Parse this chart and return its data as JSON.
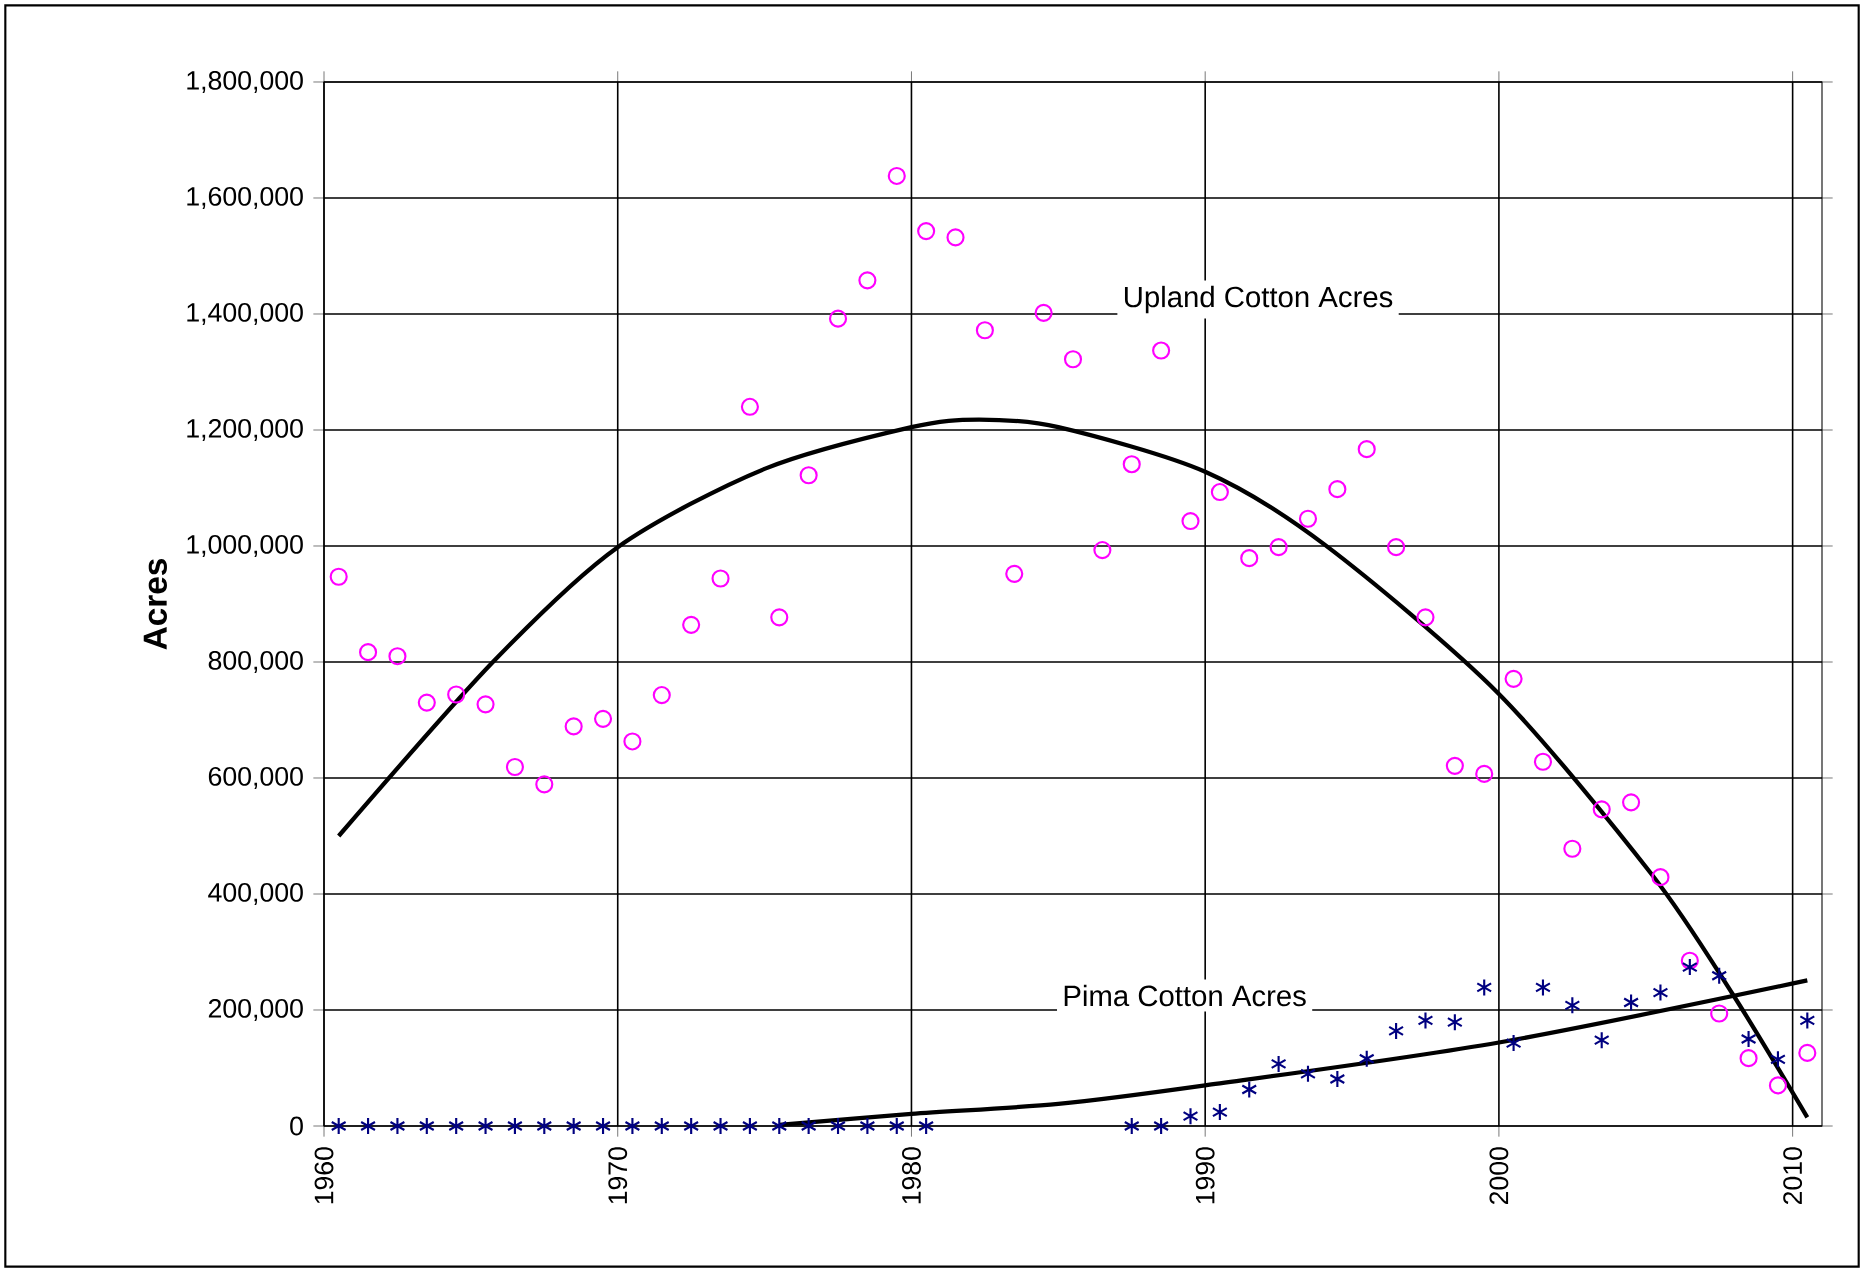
{
  "chart_data": {
    "type": "scatter",
    "ylabel": "Acres",
    "x": [
      1960.5,
      1961.5,
      1962.5,
      1963.5,
      1964.5,
      1965.5,
      1966.5,
      1967.5,
      1968.5,
      1969.5,
      1970.5,
      1971.5,
      1972.5,
      1973.5,
      1974.5,
      1975.5,
      1976.5,
      1977.5,
      1978.5,
      1979.5,
      1980.5,
      1981.5,
      1982.5,
      1983.5,
      1984.5,
      1985.5,
      1986.5,
      1987.5,
      1988.5,
      1989.5,
      1990.5,
      1991.5,
      1992.5,
      1993.5,
      1994.5,
      1995.5,
      1996.5,
      1997.5,
      1998.5,
      1999.5,
      2000.5,
      2001.5,
      2002.5,
      2003.5,
      2004.5,
      2005.5,
      2006.5,
      2007.5,
      2008.5,
      2009.5,
      2010.5
    ],
    "series": [
      {
        "name": "Upland Cotton Acres",
        "color": "#ff00ff",
        "marker": "circle",
        "values": [
          947000,
          817000,
          810000,
          730000,
          744000,
          727000,
          619000,
          589000,
          689000,
          702000,
          663000,
          743000,
          864000,
          944000,
          1240000,
          877000,
          1122000,
          1392000,
          1458000,
          1638000,
          1543000,
          1532000,
          1372000,
          952000,
          1402000,
          1322000,
          993000,
          1141000,
          1337000,
          1043000,
          1093000,
          979000,
          998000,
          1047000,
          1098000,
          1167000,
          998000,
          877000,
          621000,
          607000,
          771000,
          628000,
          478000,
          546000,
          558000,
          429000,
          285000,
          194000,
          117000,
          70000,
          126000
        ]
      },
      {
        "name": "Pima Cotton Acres",
        "color": "#000080",
        "marker": "cross",
        "values": [
          0,
          0,
          0,
          0,
          0,
          0,
          0,
          0,
          0,
          0,
          0,
          0,
          0,
          0,
          0,
          0,
          0,
          0,
          0,
          0,
          0,
          null,
          null,
          null,
          null,
          null,
          null,
          0,
          0,
          17000,
          24000,
          63000,
          107000,
          90000,
          81000,
          116000,
          164000,
          182000,
          179000,
          239000,
          143000,
          239000,
          208000,
          148000,
          213000,
          230000,
          274000,
          259000,
          150000,
          115000,
          182000
        ]
      },
      {
        "type": "line",
        "color": "#000000",
        "marker": "none",
        "x": [
          1960.5,
          1965.75,
          1970,
          1975,
          1980,
          1982.3,
          1985,
          1990,
          1994.1,
          2000,
          2005.2,
          2007.95,
          2010.5
        ],
        "values": [
          500000,
          800000,
          998000,
          1133000,
          1205000,
          1218000,
          1205000,
          1128000,
          1001000,
          745000,
          434000,
          228000,
          15000
        ]
      },
      {
        "type": "line",
        "color": "#000000",
        "marker": "none",
        "x": [
          1975.5,
          1980,
          1985,
          1990,
          2000,
          2010.5
        ],
        "values": [
          2000,
          21000,
          38000,
          70000,
          144000,
          251000
        ]
      }
    ],
    "xlim": [
      1960,
      2011
    ],
    "xticks": [
      1960,
      1970,
      1980,
      1990,
      2000,
      2010
    ],
    "ylim": [
      0,
      1800000
    ],
    "yticks": [
      {
        "value": 0,
        "label": "0"
      },
      {
        "value": 200000,
        "label": "200,000"
      },
      {
        "value": 400000,
        "label": "400,000"
      },
      {
        "value": 600000,
        "label": "600,000"
      },
      {
        "value": 800000,
        "label": "800,000"
      },
      {
        "value": 1000000,
        "label": "1,000,000"
      },
      {
        "value": 1200000,
        "label": "1,200,000"
      },
      {
        "value": 1400000,
        "label": "1,400,000"
      },
      {
        "value": 1600000,
        "label": "1,600,000"
      },
      {
        "value": 1800000,
        "label": "1,800,000"
      }
    ],
    "grid": true
  }
}
